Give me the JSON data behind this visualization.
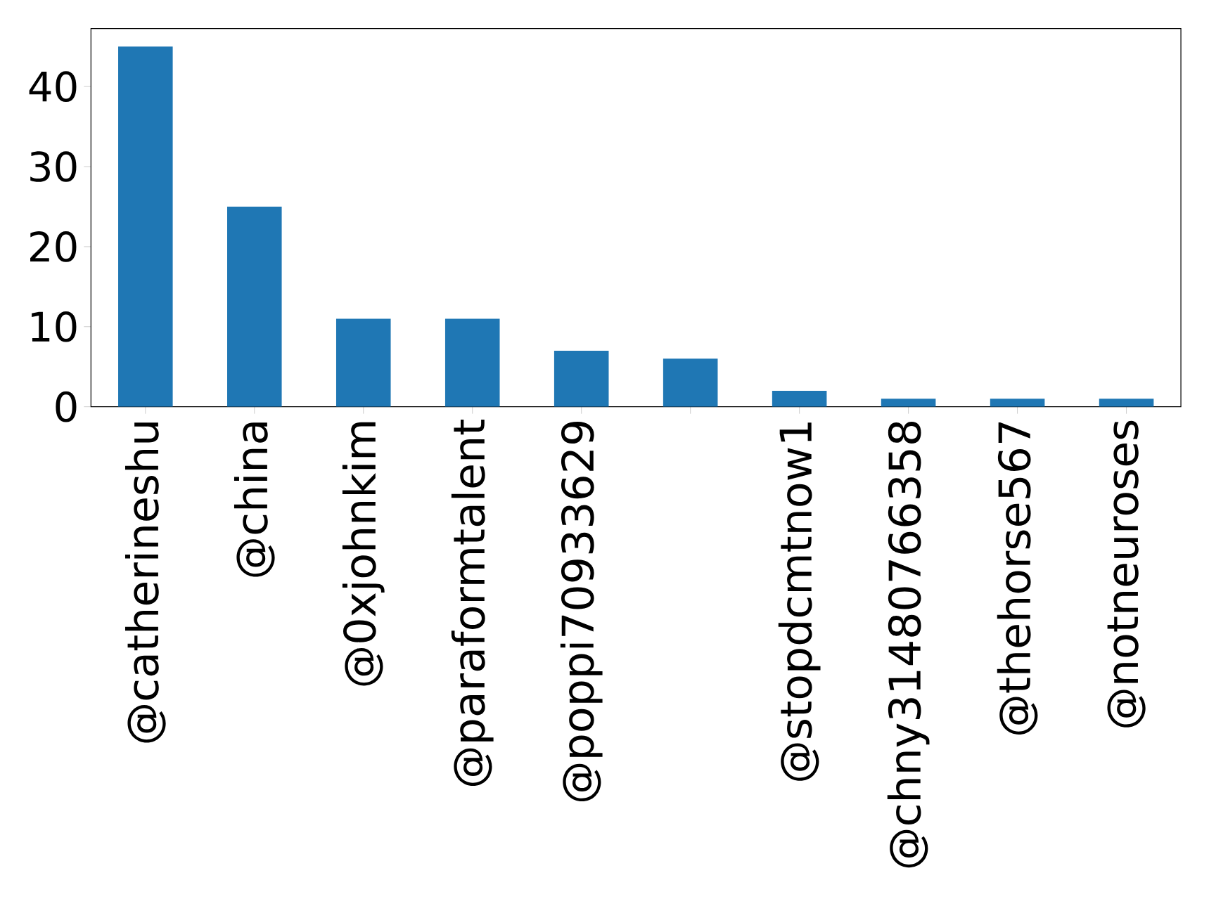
{
  "chart_data": {
    "type": "bar",
    "categories": [
      "@catherineshu",
      "@china",
      "@0xjohnkim",
      "@paraformtalent",
      "@poppi70933629",
      null,
      "@stopdcmtnow1",
      "@chny31480766358",
      "@thehorse567",
      "@notneuroses"
    ],
    "values": [
      45,
      25,
      11,
      11,
      7,
      6,
      2,
      1,
      1,
      1
    ],
    "color": "#1f77b4",
    "ylim": [
      0,
      47.25
    ],
    "yticks": [
      0,
      10,
      20,
      30,
      40
    ],
    "grid": false
  }
}
